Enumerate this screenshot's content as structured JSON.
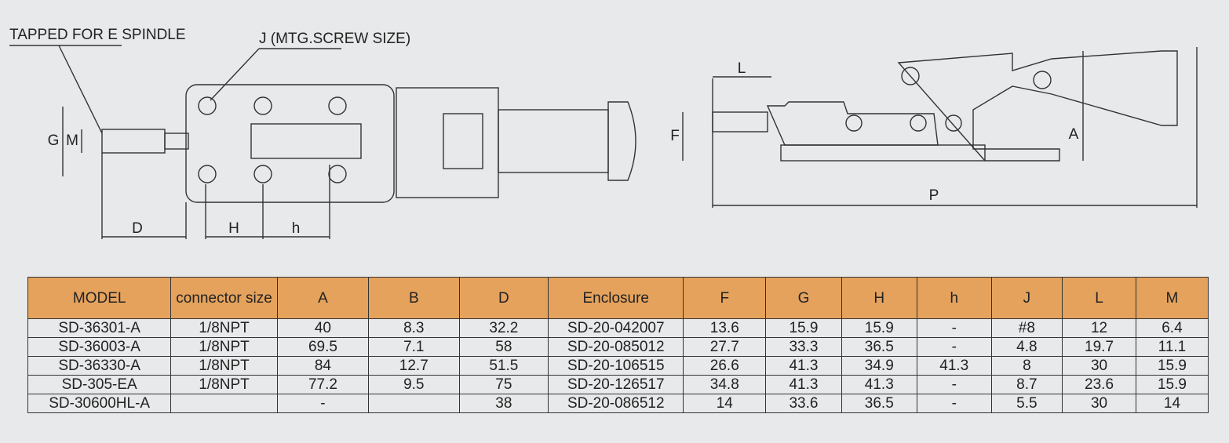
{
  "drawing": {
    "callouts": {
      "tapped": "TAPPED FOR E SPINDLE",
      "screw": "J (MTG.SCREW SIZE)"
    },
    "top_view": {
      "G": "G",
      "M": "M",
      "D": "D",
      "H": "H",
      "h": "h"
    },
    "side_view": {
      "L": "L",
      "F": "F",
      "A": "A",
      "P": "P"
    }
  },
  "table": {
    "header": [
      "MODEL",
      "connector size",
      "A",
      "B",
      "D",
      "Enclosure",
      "F",
      "G",
      "H",
      "h",
      "J",
      "L",
      "M"
    ],
    "rows": [
      [
        "SD-36301-A",
        "1/8NPT",
        "40",
        "8.3",
        "32.2",
        "SD-20-042007",
        "13.6",
        "15.9",
        "15.9",
        "-",
        "#8",
        "12",
        "6.4"
      ],
      [
        "SD-36003-A",
        "1/8NPT",
        "69.5",
        "7.1",
        "58",
        "SD-20-085012",
        "27.7",
        "33.3",
        "36.5",
        "-",
        "4.8",
        "19.7",
        "11.1"
      ],
      [
        "SD-36330-A",
        "1/8NPT",
        "84",
        "12.7",
        "51.5",
        "SD-20-106515",
        "26.6",
        "41.3",
        "34.9",
        "41.3",
        "8",
        "30",
        "15.9"
      ],
      [
        "SD-305-EA",
        "1/8NPT",
        "77.2",
        "9.5",
        "75",
        "SD-20-126517",
        "34.8",
        "41.3",
        "41.3",
        "-",
        "8.7",
        "23.6",
        "15.9"
      ],
      [
        "SD-30600HL-A",
        null,
        "-",
        null,
        "38",
        "SD-20-086512",
        "14",
        "33.6",
        "36.5",
        "-",
        "5.5",
        "30",
        "14"
      ]
    ]
  }
}
